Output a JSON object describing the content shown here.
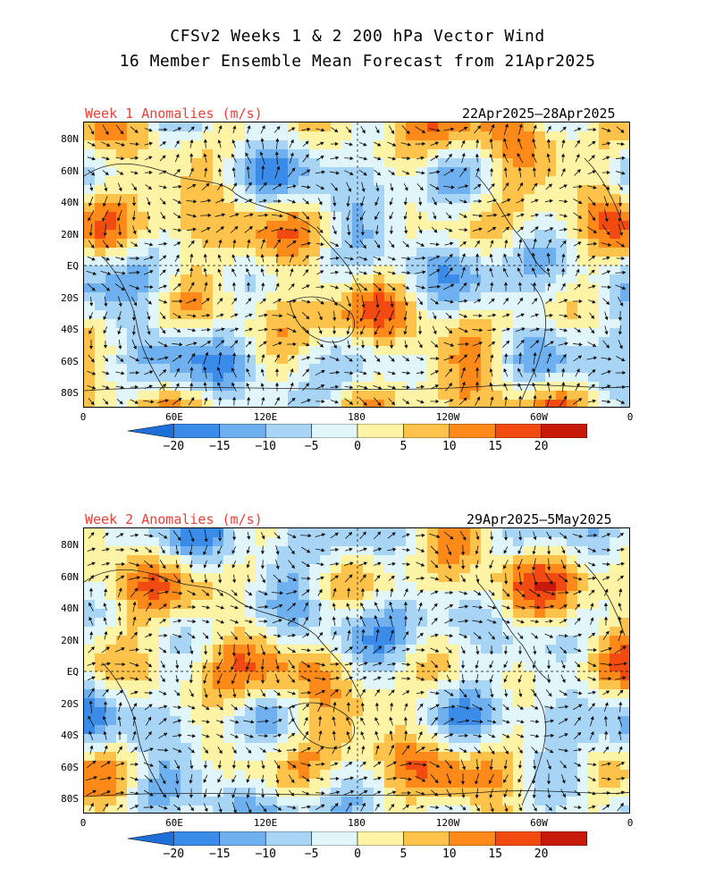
{
  "title": {
    "line1": "CFSv2 Weeks 1 & 2 200 hPa Vector Wind",
    "line2": "16 Member Ensemble Mean Forecast from 21Apr2025"
  },
  "panels": [
    {
      "label": "Week 1 Anomalies (m/s)",
      "date_range": "22Apr2025—28Apr2025"
    },
    {
      "label": "Week 2 Anomalies (m/s)",
      "date_range": "29Apr2025—5May2025"
    }
  ],
  "lat_ticks": [
    "80N",
    "60N",
    "40N",
    "20N",
    "EQ",
    "20S",
    "40S",
    "60S",
    "80S"
  ],
  "lon_ticks": [
    "0",
    "60E",
    "120E",
    "180",
    "120W",
    "60W",
    "0"
  ],
  "colorbar": {
    "ticks": [
      "−20",
      "−15",
      "−10",
      "−5",
      "0",
      "5",
      "10",
      "15",
      "20"
    ],
    "colors": [
      "#1f6fd8",
      "#3a8ce8",
      "#6eb0f0",
      "#a8d4f6",
      "#e0f6fb",
      "#fff3a6",
      "#ffc24a",
      "#ff8a1a",
      "#f24a10",
      "#c81a0a",
      "#8e0a05"
    ]
  }
}
